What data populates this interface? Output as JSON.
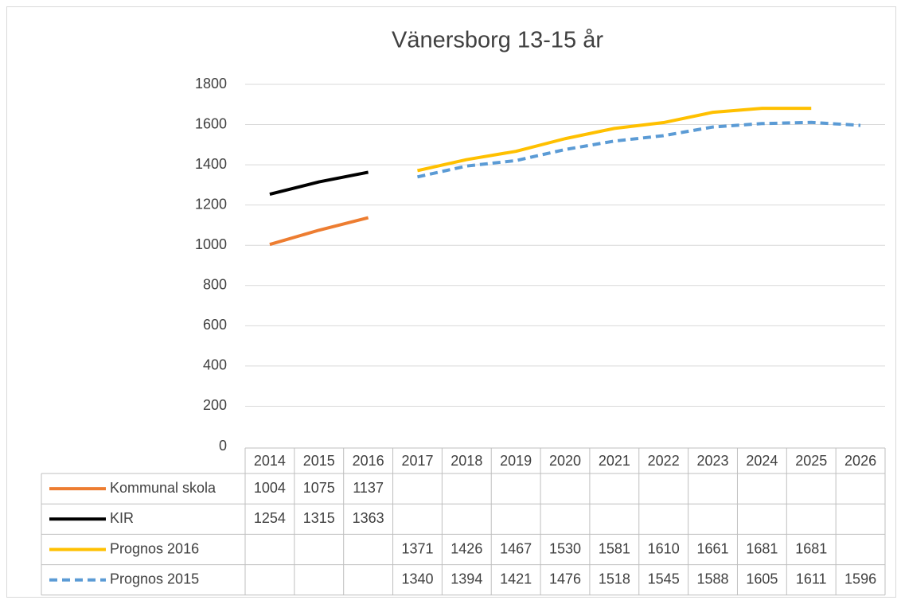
{
  "chart_data": {
    "type": "line",
    "title": "Vänersborg 13-15 år",
    "categories": [
      "2014",
      "2015",
      "2016",
      "2017",
      "2018",
      "2019",
      "2020",
      "2021",
      "2022",
      "2023",
      "2024",
      "2025",
      "2026"
    ],
    "series": [
      {
        "name": "Kommunal skola",
        "color": "#ED7D31",
        "dashed": false,
        "values": [
          1004,
          1075,
          1137,
          null,
          null,
          null,
          null,
          null,
          null,
          null,
          null,
          null,
          null
        ]
      },
      {
        "name": "KIR",
        "color": "#000000",
        "dashed": false,
        "values": [
          1254,
          1315,
          1363,
          null,
          null,
          null,
          null,
          null,
          null,
          null,
          null,
          null,
          null
        ]
      },
      {
        "name": "Prognos 2016",
        "color": "#FFC000",
        "dashed": false,
        "values": [
          null,
          null,
          null,
          1371,
          1426,
          1467,
          1530,
          1581,
          1610,
          1661,
          1681,
          1681,
          null
        ]
      },
      {
        "name": "Prognos 2015",
        "color": "#5B9BD5",
        "dashed": true,
        "values": [
          null,
          null,
          null,
          1340,
          1394,
          1421,
          1476,
          1518,
          1545,
          1588,
          1605,
          1611,
          1596
        ]
      }
    ],
    "ylim": [
      0,
      1800
    ],
    "yticks": [
      0,
      200,
      400,
      600,
      800,
      1000,
      1200,
      1400,
      1600,
      1800
    ],
    "grid": true,
    "data_table": true
  }
}
